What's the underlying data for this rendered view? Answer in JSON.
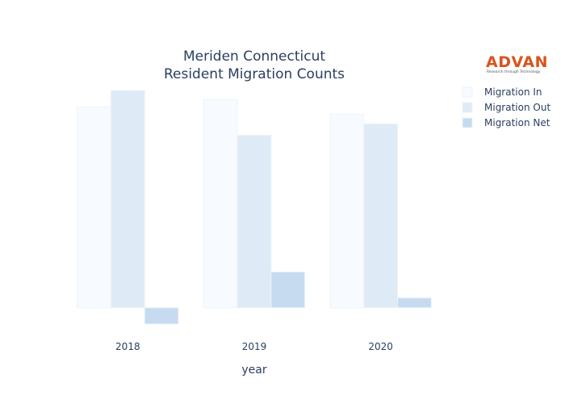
{
  "chart_data": {
    "type": "bar",
    "title": [
      "Meriden Connecticut",
      "Resident Migration Counts"
    ],
    "xlabel": "year",
    "ylabel": "",
    "categories": [
      "2018",
      "2019",
      "2020"
    ],
    "series": [
      {
        "name": "Migration In",
        "values": [
          2470,
          2560,
          2380
        ],
        "color": "#f7fbff"
      },
      {
        "name": "Migration Out",
        "values": [
          2670,
          2120,
          2260
        ],
        "color": "#deebf7"
      },
      {
        "name": "Migration Net",
        "values": [
          -200,
          440,
          120
        ],
        "color": "#c6dbef"
      }
    ],
    "ylim": [
      -250,
      2750
    ],
    "grid": false,
    "legend": "top-right"
  },
  "logo": {
    "text": "ADVAN",
    "tagline": "Research through Technology",
    "color": "#d9541e"
  }
}
